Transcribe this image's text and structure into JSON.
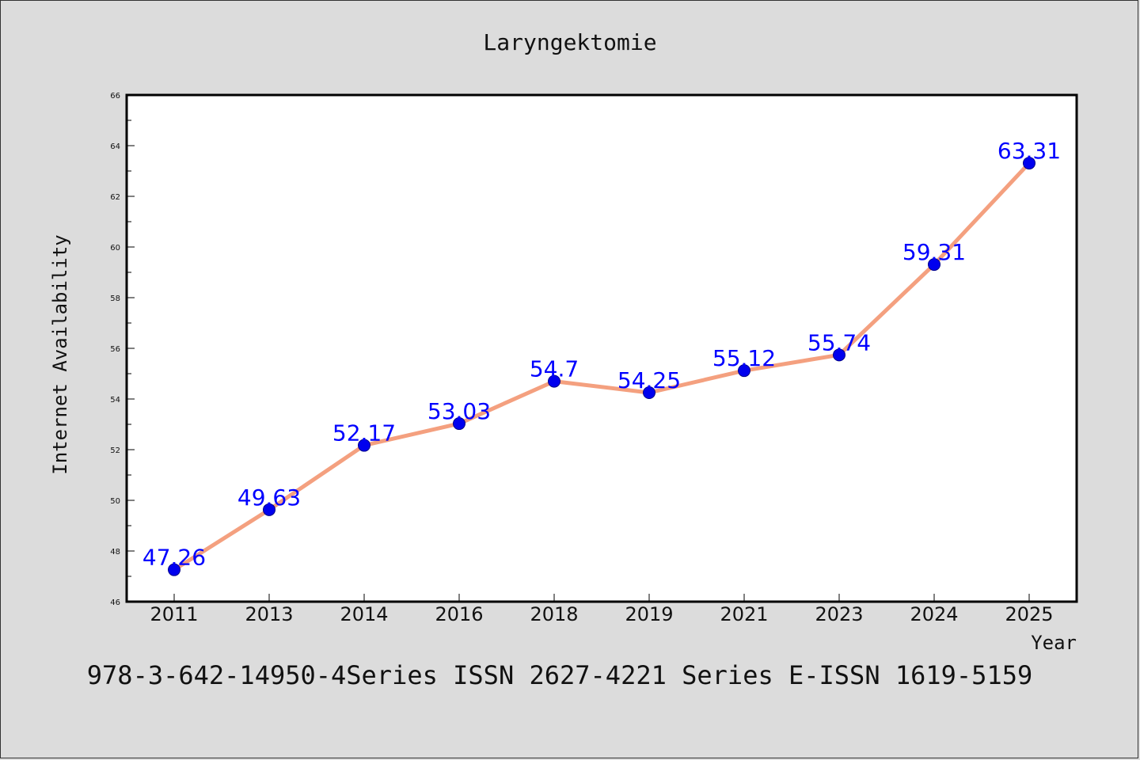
{
  "chart_data": {
    "type": "line",
    "title": "Laryngektomie",
    "xlabel": "Year",
    "ylabel": "Internet Availability",
    "categories": [
      "2011",
      "2013",
      "2014",
      "2016",
      "2018",
      "2019",
      "2021",
      "2023",
      "2024",
      "2025"
    ],
    "values": [
      47.26,
      49.63,
      52.17,
      53.03,
      54.7,
      54.25,
      55.12,
      55.74,
      59.31,
      63.31
    ],
    "data_labels": [
      "47.26",
      "49.63",
      "52.17",
      "53.03",
      "54.7",
      "54.25",
      "55.12",
      "55.74",
      "59.31",
      "63.31"
    ],
    "ylim": [
      46,
      66
    ],
    "yticks": [
      "46",
      "48",
      "50",
      "52",
      "54",
      "56",
      "58",
      "60",
      "62",
      "64",
      "66"
    ],
    "grid": false,
    "line_color": "#f4a07f",
    "marker_color": "#0000ee",
    "label_color": "#0000ff"
  },
  "footer_text": "978-3-642-14950-4Series ISSN 2627-4221 Series E-ISSN 1619-5159"
}
